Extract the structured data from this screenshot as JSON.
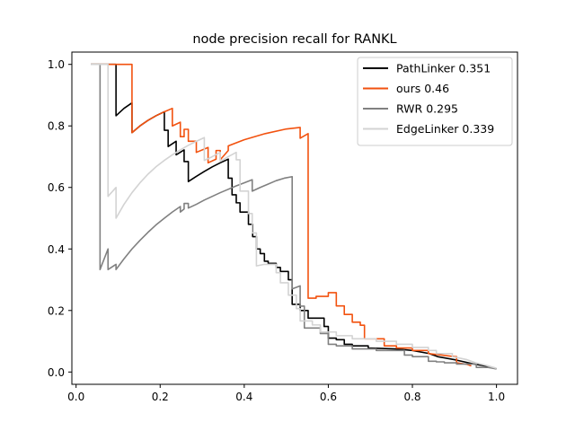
{
  "chart_data": {
    "type": "line",
    "title": "node precision recall for RANKL",
    "xlabel": "",
    "ylabel": "",
    "xlim": [
      -0.01,
      1.05
    ],
    "ylim": [
      -0.04,
      1.04
    ],
    "xticks": [
      "0.0",
      "0.2",
      "0.4",
      "0.6",
      "0.8",
      "1.0"
    ],
    "yticks": [
      "0.0",
      "0.2",
      "0.4",
      "0.6",
      "0.8",
      "1.0"
    ],
    "grid": false,
    "legend_position": "top-right",
    "series": [
      {
        "name": "PathLinker 0.351",
        "color": "#000000",
        "points": [
          [
            0.035,
            1.0
          ],
          [
            0.095,
            1.0
          ],
          [
            0.095,
            0.833
          ],
          [
            0.114,
            0.857
          ],
          [
            0.133,
            0.875
          ],
          [
            0.133,
            0.778
          ],
          [
            0.152,
            0.8
          ],
          [
            0.171,
            0.818
          ],
          [
            0.19,
            0.833
          ],
          [
            0.21,
            0.846
          ],
          [
            0.21,
            0.786
          ],
          [
            0.219,
            0.786
          ],
          [
            0.219,
            0.733
          ],
          [
            0.238,
            0.75
          ],
          [
            0.238,
            0.706
          ],
          [
            0.257,
            0.722
          ],
          [
            0.257,
            0.684
          ],
          [
            0.267,
            0.684
          ],
          [
            0.267,
            0.619
          ],
          [
            0.286,
            0.636
          ],
          [
            0.305,
            0.652
          ],
          [
            0.324,
            0.667
          ],
          [
            0.343,
            0.68
          ],
          [
            0.362,
            0.692
          ],
          [
            0.362,
            0.63
          ],
          [
            0.371,
            0.63
          ],
          [
            0.371,
            0.576
          ],
          [
            0.381,
            0.576
          ],
          [
            0.381,
            0.55
          ],
          [
            0.39,
            0.55
          ],
          [
            0.39,
            0.52
          ],
          [
            0.41,
            0.52
          ],
          [
            0.41,
            0.48
          ],
          [
            0.42,
            0.48
          ],
          [
            0.42,
            0.44
          ],
          [
            0.429,
            0.44
          ],
          [
            0.429,
            0.4
          ],
          [
            0.438,
            0.4
          ],
          [
            0.438,
            0.385
          ],
          [
            0.448,
            0.385
          ],
          [
            0.448,
            0.36
          ],
          [
            0.457,
            0.36
          ],
          [
            0.457,
            0.353
          ],
          [
            0.476,
            0.353
          ],
          [
            0.476,
            0.34
          ],
          [
            0.486,
            0.34
          ],
          [
            0.486,
            0.327
          ],
          [
            0.505,
            0.327
          ],
          [
            0.505,
            0.3
          ],
          [
            0.514,
            0.3
          ],
          [
            0.514,
            0.22
          ],
          [
            0.533,
            0.22
          ],
          [
            0.533,
            0.2
          ],
          [
            0.552,
            0.2
          ],
          [
            0.552,
            0.175
          ],
          [
            0.59,
            0.175
          ],
          [
            0.59,
            0.148
          ],
          [
            0.6,
            0.148
          ],
          [
            0.6,
            0.11
          ],
          [
            0.619,
            0.11
          ],
          [
            0.619,
            0.105
          ],
          [
            0.638,
            0.105
          ],
          [
            0.638,
            0.09
          ],
          [
            0.657,
            0.09
          ],
          [
            0.657,
            0.085
          ],
          [
            0.695,
            0.085
          ],
          [
            0.695,
            0.078
          ],
          [
            0.76,
            0.075
          ],
          [
            0.8,
            0.07
          ],
          [
            0.84,
            0.06
          ],
          [
            0.86,
            0.05
          ],
          [
            0.9,
            0.04
          ],
          [
            0.95,
            0.025
          ],
          [
            0.98,
            0.018
          ],
          [
            1.0,
            0.01
          ]
        ]
      },
      {
        "name": "ours 0.46",
        "color": "#f2520f",
        "points": [
          [
            0.035,
            1.0
          ],
          [
            0.133,
            1.0
          ],
          [
            0.133,
            0.778
          ],
          [
            0.152,
            0.8
          ],
          [
            0.171,
            0.818
          ],
          [
            0.19,
            0.833
          ],
          [
            0.21,
            0.846
          ],
          [
            0.229,
            0.857
          ],
          [
            0.229,
            0.8
          ],
          [
            0.248,
            0.812
          ],
          [
            0.248,
            0.765
          ],
          [
            0.257,
            0.765
          ],
          [
            0.257,
            0.789
          ],
          [
            0.267,
            0.789
          ],
          [
            0.267,
            0.75
          ],
          [
            0.286,
            0.75
          ],
          [
            0.286,
            0.714
          ],
          [
            0.314,
            0.73
          ],
          [
            0.314,
            0.68
          ],
          [
            0.333,
            0.692
          ],
          [
            0.333,
            0.72
          ],
          [
            0.343,
            0.72
          ],
          [
            0.343,
            0.69
          ],
          [
            0.362,
            0.72
          ],
          [
            0.362,
            0.735
          ],
          [
            0.4,
            0.755
          ],
          [
            0.45,
            0.775
          ],
          [
            0.5,
            0.79
          ],
          [
            0.533,
            0.795
          ],
          [
            0.533,
            0.76
          ],
          [
            0.552,
            0.775
          ],
          [
            0.552,
            0.24
          ],
          [
            0.571,
            0.24
          ],
          [
            0.571,
            0.246
          ],
          [
            0.6,
            0.246
          ],
          [
            0.6,
            0.258
          ],
          [
            0.619,
            0.258
          ],
          [
            0.619,
            0.215
          ],
          [
            0.638,
            0.215
          ],
          [
            0.638,
            0.187
          ],
          [
            0.657,
            0.187
          ],
          [
            0.657,
            0.162
          ],
          [
            0.676,
            0.162
          ],
          [
            0.676,
            0.152
          ],
          [
            0.686,
            0.152
          ],
          [
            0.686,
            0.108
          ],
          [
            0.733,
            0.108
          ],
          [
            0.733,
            0.085
          ],
          [
            0.762,
            0.085
          ],
          [
            0.762,
            0.078
          ],
          [
            0.8,
            0.078
          ],
          [
            0.8,
            0.07
          ],
          [
            0.838,
            0.07
          ],
          [
            0.838,
            0.06
          ],
          [
            0.87,
            0.055
          ],
          [
            0.9,
            0.05
          ],
          [
            0.905,
            0.05
          ],
          [
            0.905,
            0.03
          ],
          [
            0.93,
            0.025
          ],
          [
            0.94,
            0.02
          ]
        ]
      },
      {
        "name": "RWR 0.295",
        "color": "#808080",
        "points": [
          [
            0.035,
            1.0
          ],
          [
            0.057,
            1.0
          ],
          [
            0.057,
            0.333
          ],
          [
            0.076,
            0.4
          ],
          [
            0.076,
            0.333
          ],
          [
            0.095,
            0.35
          ],
          [
            0.095,
            0.333
          ],
          [
            0.114,
            0.368
          ],
          [
            0.133,
            0.4
          ],
          [
            0.152,
            0.428
          ],
          [
            0.171,
            0.454
          ],
          [
            0.19,
            0.478
          ],
          [
            0.21,
            0.5
          ],
          [
            0.229,
            0.52
          ],
          [
            0.248,
            0.538
          ],
          [
            0.248,
            0.52
          ],
          [
            0.257,
            0.53
          ],
          [
            0.257,
            0.548
          ],
          [
            0.267,
            0.548
          ],
          [
            0.267,
            0.533
          ],
          [
            0.286,
            0.545
          ],
          [
            0.305,
            0.559
          ],
          [
            0.324,
            0.571
          ],
          [
            0.343,
            0.583
          ],
          [
            0.362,
            0.594
          ],
          [
            0.381,
            0.605
          ],
          [
            0.4,
            0.615
          ],
          [
            0.419,
            0.625
          ],
          [
            0.419,
            0.588
          ],
          [
            0.438,
            0.6
          ],
          [
            0.457,
            0.611
          ],
          [
            0.476,
            0.622
          ],
          [
            0.495,
            0.63
          ],
          [
            0.514,
            0.635
          ],
          [
            0.514,
            0.27
          ],
          [
            0.533,
            0.28
          ],
          [
            0.533,
            0.214
          ],
          [
            0.543,
            0.214
          ],
          [
            0.543,
            0.143
          ],
          [
            0.581,
            0.143
          ],
          [
            0.581,
            0.125
          ],
          [
            0.6,
            0.125
          ],
          [
            0.6,
            0.09
          ],
          [
            0.619,
            0.09
          ],
          [
            0.619,
            0.085
          ],
          [
            0.657,
            0.085
          ],
          [
            0.657,
            0.075
          ],
          [
            0.714,
            0.075
          ],
          [
            0.714,
            0.07
          ],
          [
            0.781,
            0.07
          ],
          [
            0.781,
            0.055
          ],
          [
            0.8,
            0.055
          ],
          [
            0.8,
            0.05
          ],
          [
            0.838,
            0.05
          ],
          [
            0.838,
            0.035
          ],
          [
            0.857,
            0.035
          ],
          [
            0.857,
            0.033
          ],
          [
            0.876,
            0.033
          ],
          [
            0.876,
            0.03
          ],
          [
            0.905,
            0.03
          ],
          [
            0.905,
            0.026
          ],
          [
            0.952,
            0.026
          ],
          [
            0.952,
            0.015
          ],
          [
            0.98,
            0.015
          ],
          [
            1.0,
            0.01
          ]
        ]
      },
      {
        "name": "EdgeLinker 0.339",
        "color": "#d3d3d3",
        "points": [
          [
            0.035,
            1.0
          ],
          [
            0.076,
            1.0
          ],
          [
            0.076,
            0.571
          ],
          [
            0.095,
            0.6
          ],
          [
            0.095,
            0.5
          ],
          [
            0.114,
            0.545
          ],
          [
            0.133,
            0.583
          ],
          [
            0.152,
            0.615
          ],
          [
            0.171,
            0.643
          ],
          [
            0.19,
            0.667
          ],
          [
            0.21,
            0.688
          ],
          [
            0.229,
            0.706
          ],
          [
            0.248,
            0.722
          ],
          [
            0.267,
            0.737
          ],
          [
            0.286,
            0.75
          ],
          [
            0.305,
            0.762
          ],
          [
            0.305,
            0.688
          ],
          [
            0.324,
            0.7
          ],
          [
            0.343,
            0.714
          ],
          [
            0.343,
            0.685
          ],
          [
            0.362,
            0.7
          ],
          [
            0.381,
            0.714
          ],
          [
            0.381,
            0.69
          ],
          [
            0.39,
            0.69
          ],
          [
            0.39,
            0.588
          ],
          [
            0.41,
            0.588
          ],
          [
            0.41,
            0.515
          ],
          [
            0.419,
            0.515
          ],
          [
            0.419,
            0.452
          ],
          [
            0.429,
            0.452
          ],
          [
            0.429,
            0.345
          ],
          [
            0.448,
            0.35
          ],
          [
            0.467,
            0.35
          ],
          [
            0.476,
            0.35
          ],
          [
            0.476,
            0.323
          ],
          [
            0.486,
            0.323
          ],
          [
            0.486,
            0.29
          ],
          [
            0.505,
            0.29
          ],
          [
            0.505,
            0.25
          ],
          [
            0.524,
            0.25
          ],
          [
            0.524,
            0.206
          ],
          [
            0.533,
            0.206
          ],
          [
            0.533,
            0.166
          ],
          [
            0.562,
            0.166
          ],
          [
            0.562,
            0.153
          ],
          [
            0.581,
            0.153
          ],
          [
            0.581,
            0.13
          ],
          [
            0.619,
            0.13
          ],
          [
            0.619,
            0.118
          ],
          [
            0.657,
            0.118
          ],
          [
            0.657,
            0.108
          ],
          [
            0.714,
            0.108
          ],
          [
            0.714,
            0.1
          ],
          [
            0.762,
            0.1
          ],
          [
            0.762,
            0.09
          ],
          [
            0.8,
            0.09
          ],
          [
            0.8,
            0.08
          ],
          [
            0.838,
            0.08
          ],
          [
            0.838,
            0.07
          ],
          [
            0.857,
            0.07
          ],
          [
            0.857,
            0.06
          ],
          [
            0.895,
            0.06
          ],
          [
            0.895,
            0.05
          ],
          [
            0.93,
            0.04
          ],
          [
            0.95,
            0.03
          ],
          [
            0.98,
            0.02
          ],
          [
            1.0,
            0.012
          ]
        ]
      }
    ]
  }
}
